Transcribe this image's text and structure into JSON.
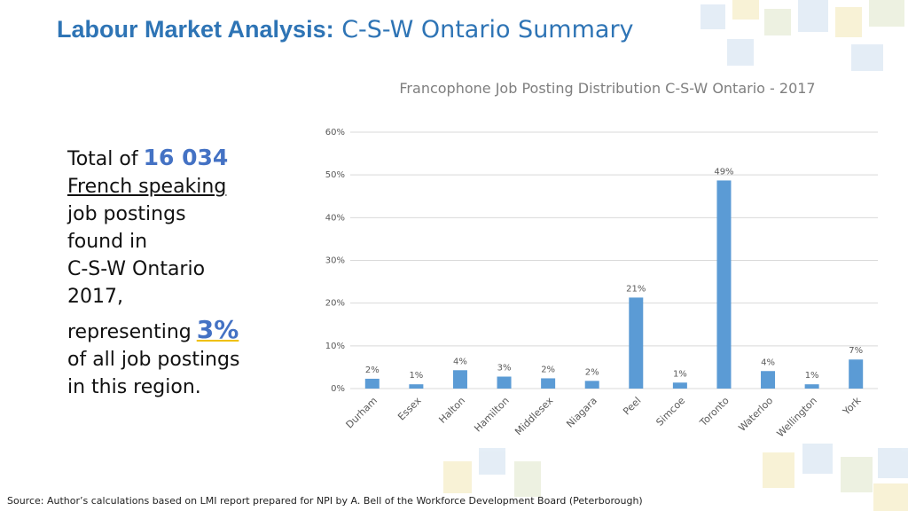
{
  "header": {
    "title_bold": "Labour Market Analysis:",
    "title_rest": "C-S-W Ontario Summary"
  },
  "summary": {
    "total_prefix": "Total of",
    "total_value": "16 034",
    "underlined": "French speaking",
    "lines_a": [
      "job postings",
      "found in",
      "C-S-W Ontario",
      "2017,"
    ],
    "share_prefix": "representing",
    "share_value": "3%",
    "lines_b": [
      "of all job postings",
      "in this region."
    ]
  },
  "chart_data": {
    "type": "bar",
    "title": "Francophone Job Posting Distribution C-S-W Ontario - 2017",
    "categories": [
      "Durham",
      "Essex",
      "Halton",
      "Hamilton",
      "Middlesex",
      "Niagara",
      "Peel",
      "Simcoe",
      "Toronto",
      "Waterloo",
      "Wellington",
      "York"
    ],
    "values": [
      2.3,
      1,
      4.3,
      2.8,
      2.4,
      1.8,
      21.3,
      1.4,
      48.7,
      4.1,
      1,
      6.8
    ],
    "value_labels": [
      "2%",
      "1%",
      "4%",
      "3%",
      "2%",
      "2%",
      "21%",
      "1%",
      "49%",
      "4%",
      "1%",
      "7%"
    ],
    "color": "#5b9bd5",
    "ylim": [
      0,
      60
    ],
    "yticks": [
      {
        "value": 0,
        "label": "0%"
      },
      {
        "value": 10,
        "label": "10%"
      },
      {
        "value": 20,
        "label": "20%"
      },
      {
        "value": 30,
        "label": "30%"
      },
      {
        "value": 40,
        "label": "40%"
      },
      {
        "value": 50,
        "label": "50%"
      },
      {
        "value": 60,
        "label": "60%"
      }
    ],
    "grid": true
  },
  "footer": {
    "source": "Source: Author’s calculations based on LMI report prepared for NPI by A. Bell of the Workforce Development Board (Peterborough)"
  }
}
